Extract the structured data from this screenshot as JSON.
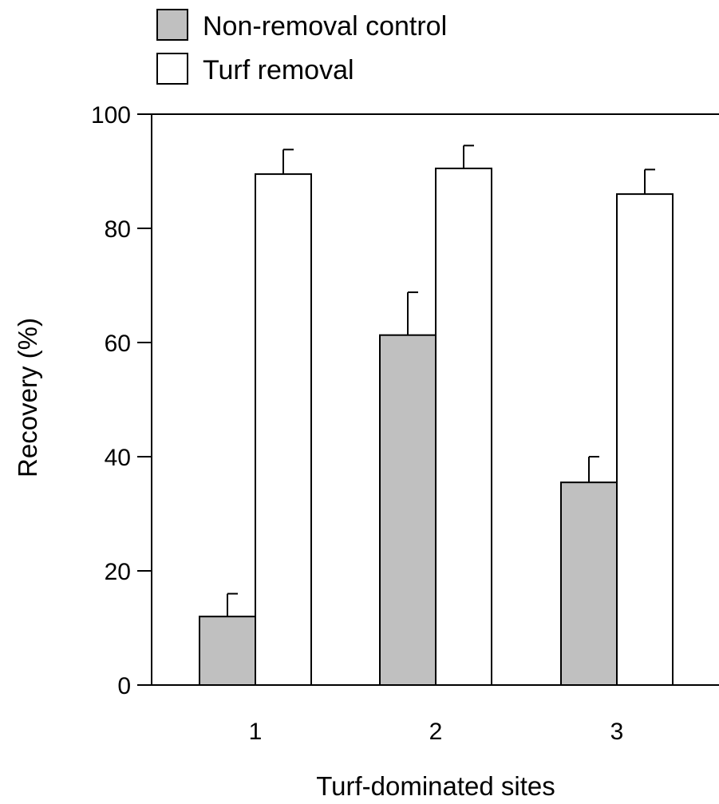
{
  "chart_data": {
    "type": "bar",
    "title": "",
    "xlabel": "Turf-dominated sites",
    "ylabel": "Recovery (%)",
    "categories": [
      "1",
      "2",
      "3"
    ],
    "ylim": [
      0,
      100
    ],
    "yticks": [
      0,
      20,
      40,
      60,
      80,
      100
    ],
    "series": [
      {
        "name": "Non-removal control",
        "color": "#c0c0c0",
        "values": [
          12,
          61.3,
          35.5
        ],
        "error": [
          4,
          7.5,
          4.5
        ]
      },
      {
        "name": "Turf removal",
        "color": "#ffffff",
        "values": [
          89.5,
          90.5,
          86
        ],
        "error": [
          4.3,
          4,
          4.3
        ]
      }
    ],
    "legend_position": "top-left",
    "error_bars": "upper only",
    "grid": false
  }
}
